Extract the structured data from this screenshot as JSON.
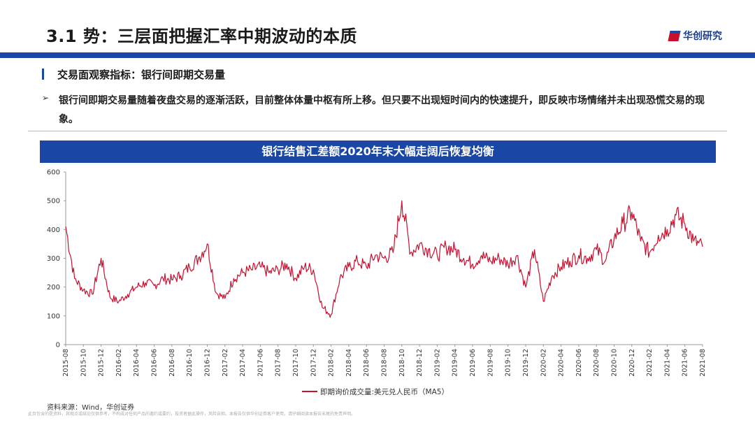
{
  "header": {
    "title": "3.1 势：三层面把握汇率中期波动的本质",
    "logo_text": "华创研究"
  },
  "section": {
    "subtitle": "交易面观察指标：银行间即期交易量",
    "bullet_symbol": "➢",
    "bullet_text": "银行间即期交易量随着夜盘交易的逐渐活跃，目前整体体量中枢有所上移。但只要不出现短时间内的快速提升，即反映市场情绪并未出现恐慌交易的现象。"
  },
  "chart_header": "银行结售汇差额2020年末大幅走阔后恢复均衡",
  "footer": {
    "source": "资料来源：Wind，华创证券",
    "disclaimer": "此页包含的是资料，其观点或结论仅供参考，不构成对任何产品的邀约或要约，投资者据此操作，风险自担。本报告仅供华创证券客户使用，请仔细阅读本报告末尾的免责声明。"
  },
  "colors": {
    "accent": "#1a47a5",
    "line": "#c8102e"
  },
  "chart_data": {
    "type": "line",
    "title": "银行结售汇差额2020年末大幅走阔后恢复均衡",
    "xlabel": "",
    "ylabel": "",
    "ylim": [
      0,
      600
    ],
    "yticks": [
      0,
      100,
      200,
      300,
      400,
      500,
      600
    ],
    "grid": false,
    "legend_position": "bottom",
    "x_tick_labels": [
      "2015-08",
      "2015-10",
      "2015-12",
      "2016-02",
      "2016-04",
      "2016-06",
      "2016-08",
      "2016-10",
      "2016-12",
      "2017-02",
      "2017-04",
      "2017-06",
      "2017-08",
      "2017-10",
      "2017-12",
      "2018-02",
      "2018-04",
      "2018-06",
      "2018-08",
      "2018-10",
      "2018-12",
      "2019-02",
      "2019-04",
      "2019-06",
      "2019-08",
      "2019-10",
      "2019-12",
      "2020-02",
      "2020-04",
      "2020-06",
      "2020-08",
      "2020-10",
      "2020-12",
      "2021-02",
      "2021-04",
      "2021-06",
      "2021-08"
    ],
    "series": [
      {
        "name": "即期询价成交量:美元兑人民币（MA5）",
        "x": [
          "2015-08",
          "2015-09",
          "2015-10",
          "2015-11",
          "2015-12",
          "2016-01",
          "2016-02",
          "2016-03",
          "2016-04",
          "2016-05",
          "2016-06",
          "2016-07",
          "2016-08",
          "2016-09",
          "2016-10",
          "2016-11",
          "2016-12",
          "2017-01",
          "2017-02",
          "2017-03",
          "2017-04",
          "2017-05",
          "2017-06",
          "2017-07",
          "2017-08",
          "2017-09",
          "2017-10",
          "2017-11",
          "2017-12",
          "2018-01",
          "2018-02",
          "2018-03",
          "2018-04",
          "2018-05",
          "2018-06",
          "2018-07",
          "2018-08",
          "2018-09",
          "2018-10",
          "2018-11",
          "2018-12",
          "2019-01",
          "2019-02",
          "2019-03",
          "2019-04",
          "2019-05",
          "2019-06",
          "2019-07",
          "2019-08",
          "2019-09",
          "2019-10",
          "2019-11",
          "2019-12",
          "2020-01",
          "2020-02",
          "2020-03",
          "2020-04",
          "2020-05",
          "2020-06",
          "2020-07",
          "2020-08",
          "2020-09",
          "2020-10",
          "2020-11",
          "2020-12",
          "2021-01",
          "2021-02",
          "2021-03",
          "2021-04",
          "2021-05",
          "2021-06",
          "2021-07",
          "2021-08"
        ],
        "values": [
          410,
          230,
          190,
          175,
          300,
          165,
          150,
          175,
          200,
          215,
          205,
          230,
          225,
          240,
          270,
          300,
          350,
          180,
          160,
          230,
          250,
          260,
          270,
          250,
          260,
          280,
          230,
          270,
          260,
          130,
          105,
          230,
          270,
          290,
          270,
          310,
          300,
          320,
          500,
          320,
          350,
          330,
          310,
          340,
          330,
          300,
          280,
          310,
          290,
          300,
          280,
          310,
          200,
          330,
          150,
          240,
          270,
          290,
          310,
          300,
          330,
          290,
          370,
          420,
          460,
          360,
          320,
          380,
          400,
          450,
          420,
          360,
          340
        ]
      }
    ]
  }
}
